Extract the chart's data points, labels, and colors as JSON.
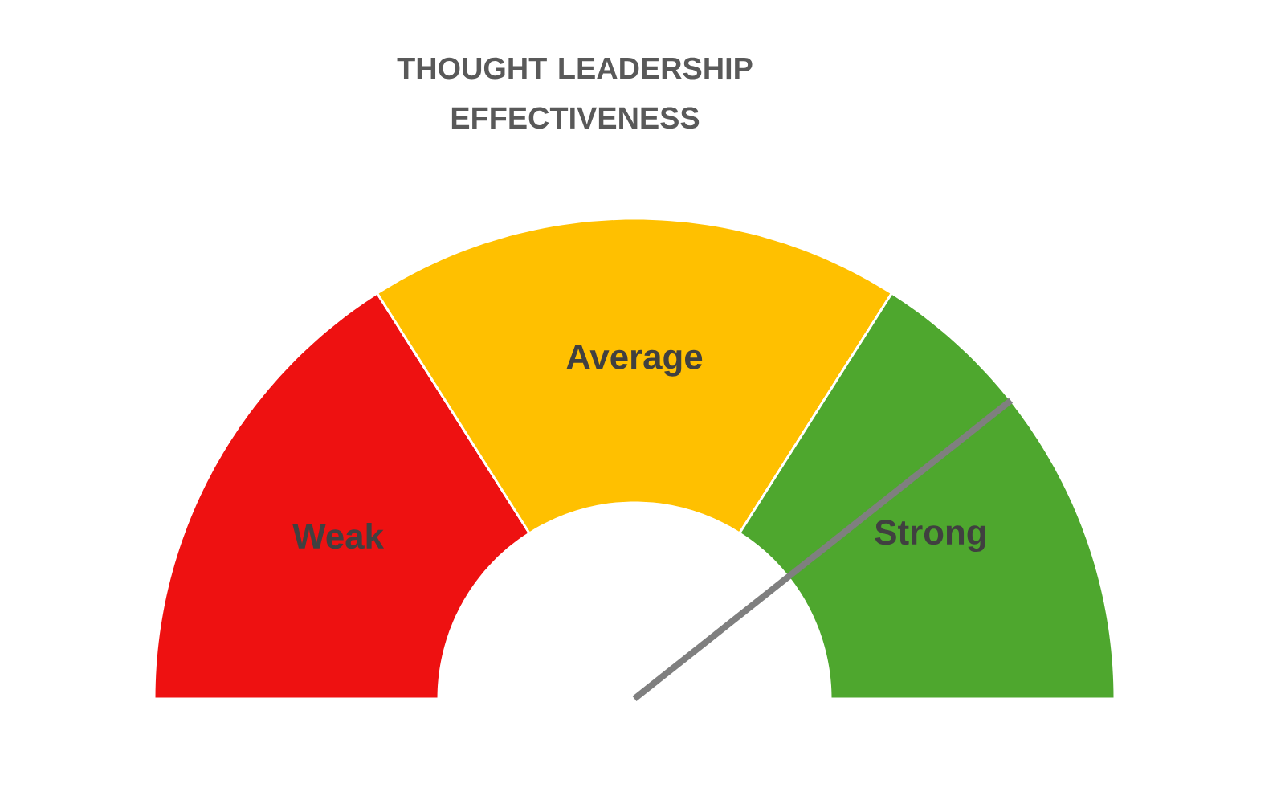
{
  "chart_data": {
    "type": "donut",
    "title": "THOUGHT LEADERSHIP EFFECTIVENESS",
    "categories": [
      "Weak",
      "Average",
      "Strong"
    ],
    "values": [
      32,
      36,
      32
    ],
    "colors": [
      "#ee1111",
      "#ffc000",
      "#4ea72e"
    ],
    "needle": "Strong"
  }
}
